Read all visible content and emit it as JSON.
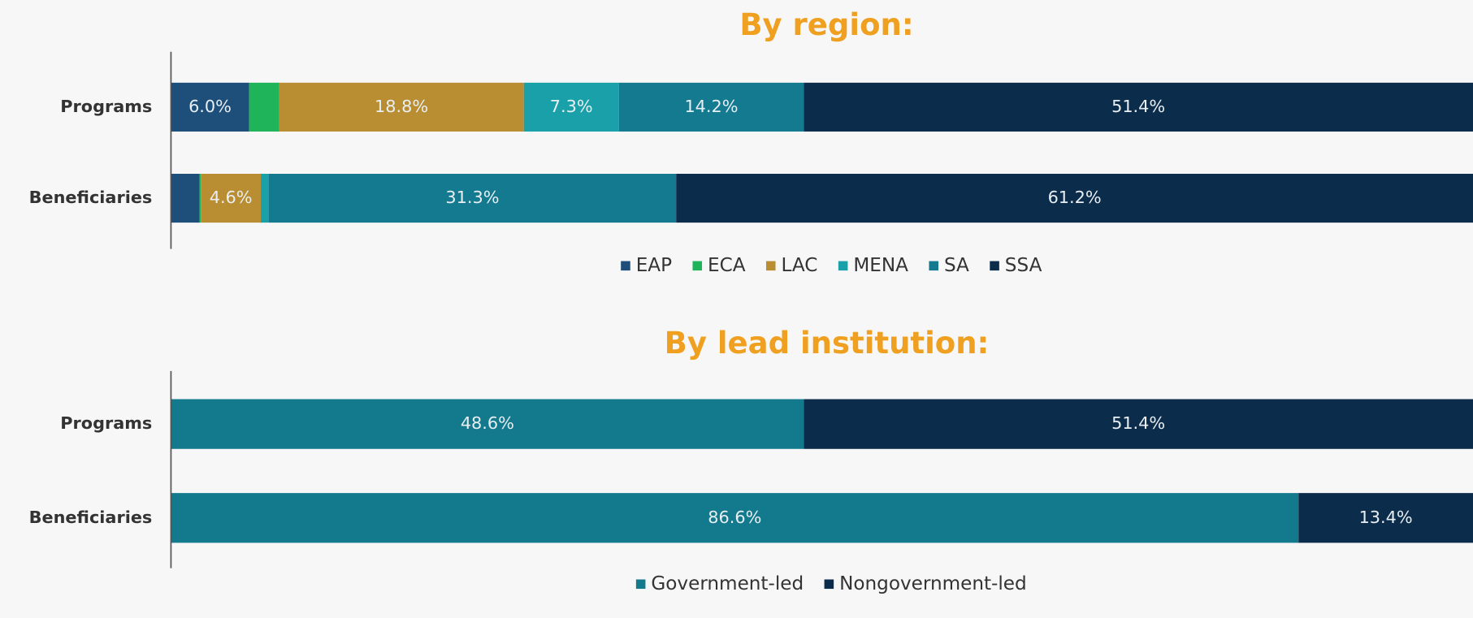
{
  "chart_data": [
    {
      "type": "bar",
      "orientation": "horizontal",
      "stacked": true,
      "title": "By region:",
      "categories": [
        "Programs",
        "Beneficiaries"
      ],
      "xlim": [
        0,
        100
      ],
      "series": [
        {
          "name": "EAP",
          "color": "#1d4f7a",
          "values": [
            6.0,
            2.2
          ],
          "value_labels": [
            "6.0%",
            null
          ]
        },
        {
          "name": "ECA",
          "color": "#1fb35a",
          "values": [
            2.3,
            0.1
          ],
          "value_labels": [
            null,
            null
          ]
        },
        {
          "name": "LAC",
          "color": "#b98e33",
          "values": [
            18.8,
            4.6
          ],
          "value_labels": [
            "18.8%",
            "4.6%"
          ]
        },
        {
          "name": "MENA",
          "color": "#1aa0a8",
          "values": [
            7.3,
            0.6
          ],
          "value_labels": [
            "7.3%",
            null
          ]
        },
        {
          "name": "SA",
          "color": "#147a90",
          "values": [
            14.2,
            31.3
          ],
          "value_labels": [
            "14.2%",
            "31.3%"
          ]
        },
        {
          "name": "SSA",
          "color": "#0b2c4b",
          "values": [
            51.4,
            61.2
          ],
          "value_labels": [
            "51.4%",
            "61.2%"
          ]
        }
      ]
    },
    {
      "type": "bar",
      "orientation": "horizontal",
      "stacked": true,
      "title": "By lead institution:",
      "categories": [
        "Programs",
        "Beneficiaries"
      ],
      "xlim": [
        0,
        100
      ],
      "series": [
        {
          "name": "Government-led",
          "color": "#137a8e",
          "values": [
            48.6,
            86.6
          ],
          "value_labels": [
            "48.6%",
            "86.6%"
          ]
        },
        {
          "name": "Nongovernment-led",
          "color": "#0b2c4b",
          "values": [
            51.4,
            13.4
          ],
          "value_labels": [
            "51.4%",
            "13.4%"
          ]
        }
      ]
    }
  ]
}
